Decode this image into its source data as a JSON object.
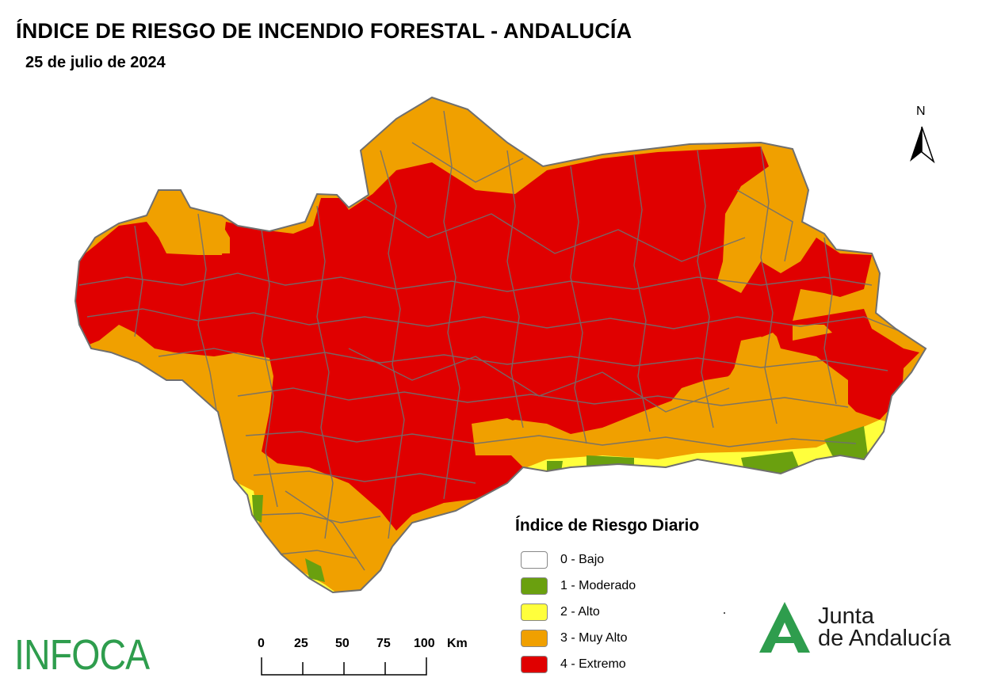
{
  "title": "ÍNDICE DE RIESGO DE INCENDIO FORESTAL - ANDALUCÍA",
  "date": "25 de julio de 2024",
  "north_label": "N",
  "legend": {
    "title": "Índice de Riesgo Diario",
    "items": [
      {
        "label": "0 - Bajo",
        "color": "#ffffff"
      },
      {
        "label": "1 - Moderado",
        "color": "#6aa00f"
      },
      {
        "label": "2 - Alto",
        "color": "#ffff3c"
      },
      {
        "label": "3 - Muy Alto",
        "color": "#f0a000"
      },
      {
        "label": "4 - Extremo",
        "color": "#e00000"
      }
    ]
  },
  "scale_bar": {
    "ticks": [
      "0",
      "25",
      "50",
      "75",
      "100"
    ],
    "unit": "Km"
  },
  "logos": {
    "infoca": "INFOCA",
    "junta_line1": "Junta",
    "junta_line2": "de Andalucía"
  },
  "colors": {
    "extremo": "#e00000",
    "muy_alto": "#f0a000",
    "alto": "#ffff3c",
    "moderado": "#6aa00f",
    "boundaries": "#6f6f6f",
    "brand_green": "#2e9d4d"
  }
}
